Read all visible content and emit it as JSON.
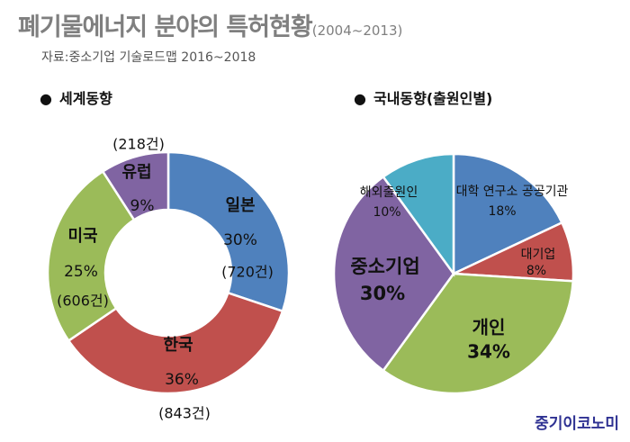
{
  "header": {
    "title": "폐기물에너지 분야의 특허현황",
    "period": "(2004~2013)",
    "source": "자료:중소기업 기술로드맵 2016~2018"
  },
  "sections": {
    "world_label": "세계동향",
    "domestic_label": "국내동향(출원인별)",
    "bullet": "●"
  },
  "brand": "중기이코노미",
  "chart_data": [
    {
      "type": "pie",
      "title": "세계동향",
      "donut": true,
      "start_direction": "top",
      "order": "clockwise",
      "slices": [
        {
          "label": "일본",
          "percent": "30%",
          "count": "(720건)",
          "value": 720,
          "color": "#4f81bd"
        },
        {
          "label": "한국",
          "percent": "36%",
          "count": "(843건)",
          "value": 843,
          "color": "#c0504d"
        },
        {
          "label": "미국",
          "percent": "25%",
          "count": "(606건)",
          "value": 606,
          "color": "#9bbb59"
        },
        {
          "label": "유럽",
          "percent": "9%",
          "count": "(218건)",
          "value": 218,
          "color": "#8064a2"
        }
      ]
    },
    {
      "type": "pie",
      "title": "국내동향(출원인별)",
      "donut": false,
      "start_direction": "top",
      "order": "clockwise",
      "slices": [
        {
          "label": "대학 연구소 공공기관",
          "percent": "18%",
          "value": 18,
          "color": "#4f81bd"
        },
        {
          "label": "대기업",
          "percent": "8%",
          "value": 8,
          "color": "#c0504d"
        },
        {
          "label": "개인",
          "percent": "34%",
          "value": 34,
          "color": "#9bbb59"
        },
        {
          "label": "중소기업",
          "percent": "30%",
          "value": 30,
          "color": "#8064a2"
        },
        {
          "label": "해외출원인",
          "percent": "10%",
          "value": 10,
          "color": "#4bacc6"
        }
      ]
    }
  ]
}
